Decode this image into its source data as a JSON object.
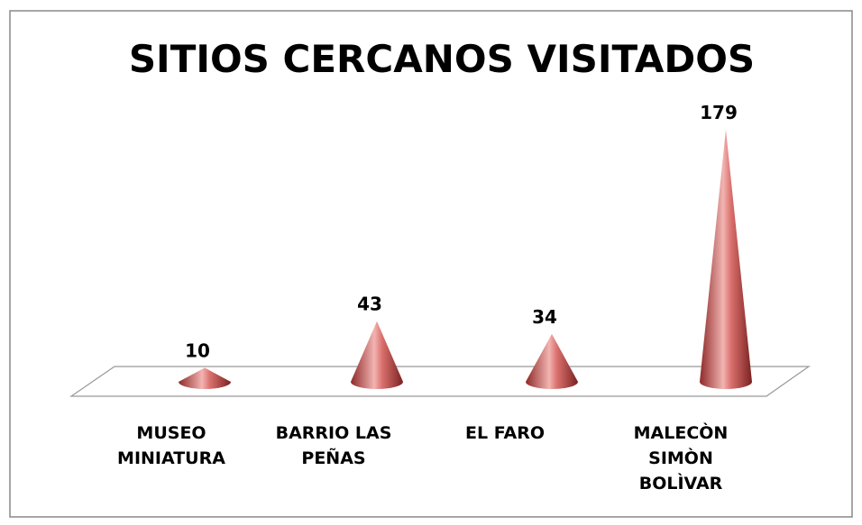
{
  "chart_data": {
    "type": "cone",
    "title": "SITIOS CERCANOS VISITADOS",
    "categories": [
      "MUSEO MINIATURA",
      "BARRIO LAS PEÑAS",
      "EL FARO",
      "MALECÒN SIMÒN BOLÌVAR"
    ],
    "values": [
      10,
      43,
      34,
      179
    ],
    "color": "#c0504d"
  }
}
